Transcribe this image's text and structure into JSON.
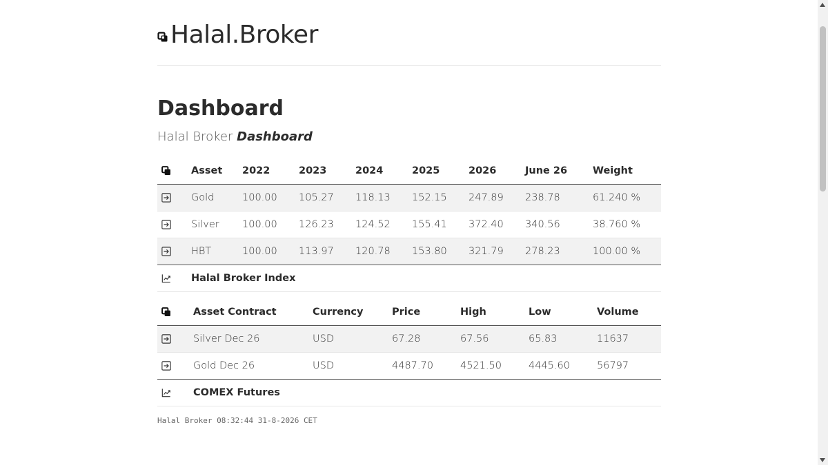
{
  "brand": {
    "title": "Halal.Broker",
    "icon": "stacked-squares-icon"
  },
  "page": {
    "title": "Dashboard",
    "subtitle_plain": "Halal Broker",
    "subtitle_emphasis": "Dashboard"
  },
  "index_table": {
    "header_icon": "stacked-squares-icon",
    "columns": [
      "Asset",
      "2022",
      "2023",
      "2024",
      "2025",
      "2026",
      "June 26",
      "Weight"
    ],
    "rows": [
      {
        "icon": "arrow-right-box-icon",
        "cells": [
          "Gold",
          "100.00",
          "105.27",
          "118.13",
          "152.15",
          "247.89",
          "238.78",
          "61.240 %"
        ]
      },
      {
        "icon": "arrow-right-box-icon",
        "cells": [
          "Silver",
          "100.00",
          "126.23",
          "124.52",
          "155.41",
          "372.40",
          "340.56",
          "38.760 %"
        ]
      },
      {
        "icon": "arrow-right-box-icon",
        "cells": [
          "HBT",
          "100.00",
          "113.97",
          "120.78",
          "153.80",
          "321.79",
          "278.23",
          "100.00 %"
        ]
      }
    ],
    "footer_icon": "trend-chart-icon",
    "footer_label": "Halal Broker Index"
  },
  "futures_table": {
    "header_icon": "stacked-squares-icon",
    "columns": [
      "Asset Contract",
      "Currency",
      "Price",
      "High",
      "Low",
      "Volume"
    ],
    "rows": [
      {
        "icon": "arrow-right-box-icon",
        "cells": [
          "Silver Dec 26",
          "USD",
          "67.28",
          "67.56",
          "65.83",
          "11637"
        ]
      },
      {
        "icon": "arrow-right-box-icon",
        "cells": [
          "Gold Dec 26",
          "USD",
          "4487.70",
          "4521.50",
          "4445.60",
          "56797"
        ]
      }
    ],
    "footer_icon": "trend-chart-icon",
    "footer_label": "COMEX Futures"
  },
  "footer": {
    "brand": "Halal Broker",
    "timestamp": "08:32:44 31-8-2026 CET"
  },
  "colors": {
    "text": "#333333",
    "rule": "#555555",
    "stripe": "#f2f2f2"
  }
}
